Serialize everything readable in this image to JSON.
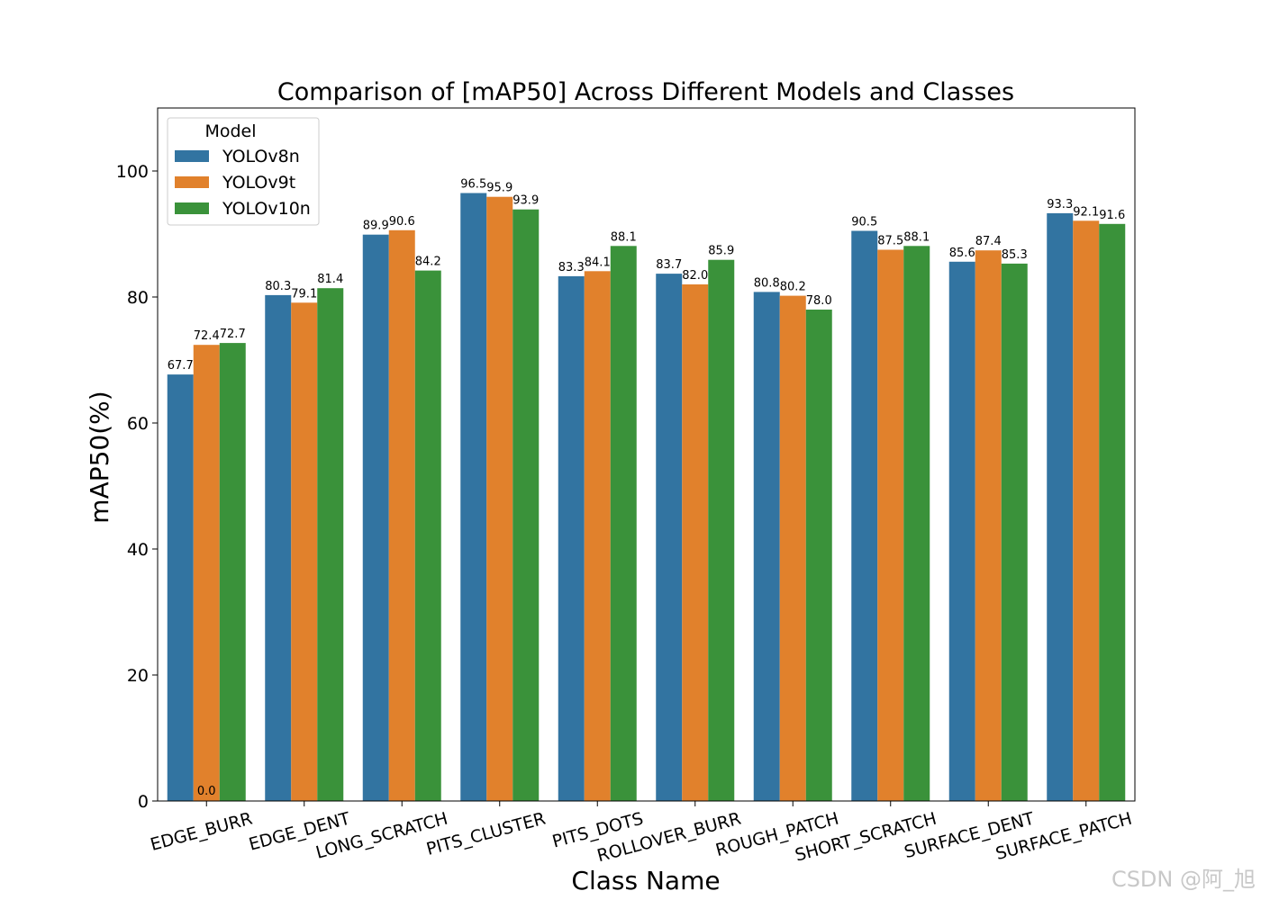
{
  "chart_data": {
    "type": "bar",
    "title": "Comparison of [mAP50] Across Different Models and Classes",
    "xlabel": "Class Name",
    "ylabel": "mAP50(%)",
    "ylim": [
      0,
      110
    ],
    "yticks": [
      0,
      20,
      40,
      60,
      80,
      100
    ],
    "categories": [
      "EDGE_BURR",
      "EDGE_DENT",
      "LONG_SCRATCH",
      "PITS_CLUSTER",
      "PITS_DOTS",
      "ROLLOVER_BURR",
      "ROUGH_PATCH",
      "SHORT_SCRATCH",
      "SURFACE_DENT",
      "SURFACE_PATCH"
    ],
    "legend": {
      "title": "Model",
      "position": "top-left"
    },
    "series": [
      {
        "name": "YOLOv8n",
        "color": "#3274a1",
        "values": [
          67.7,
          80.3,
          89.9,
          96.5,
          83.3,
          83.7,
          80.8,
          90.5,
          85.6,
          93.3
        ]
      },
      {
        "name": "YOLOv9t",
        "color": "#e1812c",
        "values": [
          72.4,
          79.1,
          90.6,
          95.9,
          84.1,
          82.0,
          80.2,
          87.5,
          87.4,
          92.1
        ]
      },
      {
        "name": "YOLOv10n",
        "color": "#3a923a",
        "values": [
          72.7,
          81.4,
          84.2,
          93.9,
          88.1,
          85.9,
          78.0,
          88.1,
          85.3,
          91.6
        ]
      }
    ],
    "extra_labels": [
      {
        "category": "EDGE_BURR",
        "text": "0.0"
      }
    ]
  },
  "watermark": "CSDN @阿_旭"
}
